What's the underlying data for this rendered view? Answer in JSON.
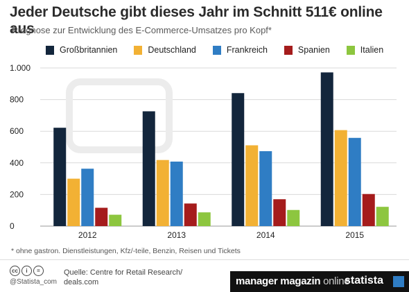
{
  "title": "Jeder Deutsche gibt dieses Jahr im Schnitt 511€ online aus",
  "subtitle": "Prognose zur Entwicklung des E-Commerce-Umsatzes pro Kopf*",
  "footnote": "* ohne gastron. Dienstleistungen, Kfz/-teile, Benzin, Reisen und Tickets",
  "footer": {
    "copyright": "@Statista_com",
    "source_line1": "Quelle: Centre for Retail Research/",
    "source_line2": "deals.com",
    "brand_mm": "manager magazin",
    "brand_mm_online": "online",
    "brand_statista": "statista",
    "cc_icons": [
      "cc-icon",
      "by-icon",
      "nd-icon"
    ]
  },
  "chart_data": {
    "type": "bar",
    "title": "Jeder Deutsche gibt dieses Jahr im Schnitt 511€ online aus",
    "subtitle": "Prognose zur Entwicklung des E-Commerce-Umsatzes pro Kopf*",
    "categories": [
      "2012",
      "2013",
      "2014",
      "2015"
    ],
    "series": [
      {
        "name": "Großbritannien",
        "color": "#13263c",
        "values": [
          622,
          726,
          841,
          972
        ]
      },
      {
        "name": "Deutschland",
        "color": "#f2b134",
        "values": [
          300,
          418,
          511,
          607
        ]
      },
      {
        "name": "Frankreich",
        "color": "#2f7dc4",
        "values": [
          363,
          408,
          474,
          558
        ]
      },
      {
        "name": "Spanien",
        "color": "#a51c1c",
        "values": [
          116,
          143,
          170,
          203
        ]
      },
      {
        "name": "Italien",
        "color": "#8dc63f",
        "values": [
          72,
          87,
          102,
          122
        ]
      }
    ],
    "yticks": [
      0,
      200,
      400,
      600,
      800,
      "1.000"
    ],
    "ylim": [
      0,
      1000
    ],
    "grid": true,
    "legend": "top"
  }
}
